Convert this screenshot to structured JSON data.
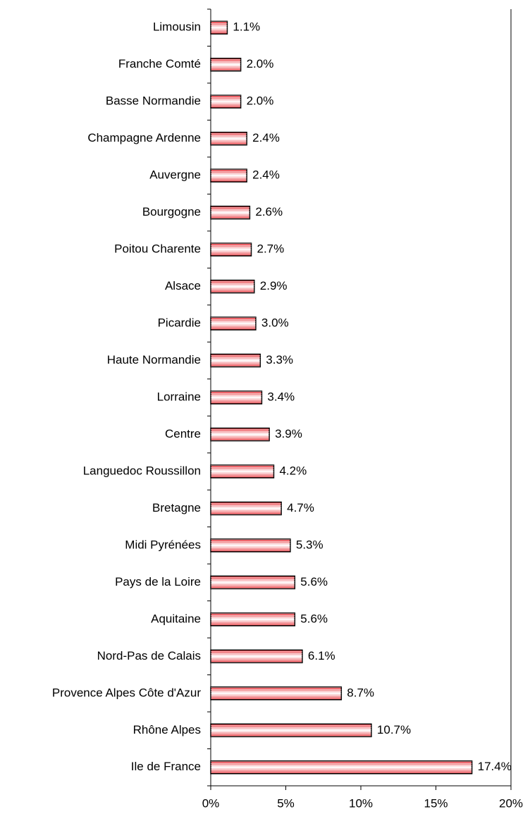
{
  "chart_data": {
    "type": "bar",
    "orientation": "horizontal",
    "categories": [
      "Limousin",
      "Franche Comté",
      "Basse Normandie",
      "Champagne Ardenne",
      "Auvergne",
      "Bourgogne",
      "Poitou Charente",
      "Alsace",
      "Picardie",
      "Haute Normandie",
      "Lorraine",
      "Centre",
      "Languedoc Roussillon",
      "Bretagne",
      "Midi Pyrénées",
      "Pays de la Loire",
      "Aquitaine",
      "Nord-Pas de Calais",
      "Provence Alpes Côte d'Azur",
      "Rhône Alpes",
      "Ile de France"
    ],
    "values": [
      1.1,
      2.0,
      2.0,
      2.4,
      2.4,
      2.6,
      2.7,
      2.9,
      3.0,
      3.3,
      3.4,
      3.9,
      4.2,
      4.7,
      5.3,
      5.6,
      5.6,
      6.1,
      8.7,
      10.7,
      17.4
    ],
    "value_labels": [
      "1.1%",
      "2.0%",
      "2.0%",
      "2.4%",
      "2.4%",
      "2.6%",
      "2.7%",
      "2.9%",
      "3.0%",
      "3.3%",
      "3.4%",
      "3.9%",
      "4.2%",
      "4.7%",
      "5.3%",
      "5.6%",
      "5.6%",
      "6.1%",
      "8.7%",
      "10.7%",
      "17.4%"
    ],
    "color": "#e8383f",
    "xlim": [
      0,
      20
    ],
    "xticks": [
      {
        "value": 0,
        "label": "0%"
      },
      {
        "value": 5,
        "label": "5%"
      },
      {
        "value": 10,
        "label": "10%"
      },
      {
        "value": 15,
        "label": "15%"
      },
      {
        "value": 20,
        "label": "20%"
      }
    ]
  }
}
